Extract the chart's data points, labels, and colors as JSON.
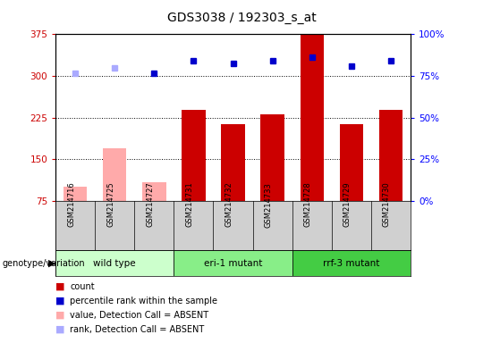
{
  "title": "GDS3038 / 192303_s_at",
  "samples": [
    "GSM214716",
    "GSM214725",
    "GSM214727",
    "GSM214731",
    "GSM214732",
    "GSM214733",
    "GSM214728",
    "GSM214729",
    "GSM214730"
  ],
  "count_values": [
    100,
    170,
    108,
    238,
    213,
    230,
    375,
    213,
    238
  ],
  "count_absent": [
    true,
    true,
    true,
    false,
    false,
    false,
    false,
    false,
    false
  ],
  "rank_values": [
    305,
    315,
    305,
    328,
    323,
    328,
    333,
    318,
    327
  ],
  "rank_absent": [
    true,
    true,
    false,
    false,
    false,
    false,
    false,
    false,
    false
  ],
  "groups": [
    {
      "label": "wild type",
      "indices": [
        0,
        1,
        2
      ]
    },
    {
      "label": "eri-1 mutant",
      "indices": [
        3,
        4,
        5
      ]
    },
    {
      "label": "rrf-3 mutant",
      "indices": [
        6,
        7,
        8
      ]
    }
  ],
  "group_colors": [
    "#ccffcc",
    "#88ee88",
    "#44cc44"
  ],
  "ylim_left": [
    75,
    375
  ],
  "ylim_right": [
    0,
    100
  ],
  "yticks_left": [
    75,
    150,
    225,
    300,
    375
  ],
  "yticks_right": [
    0,
    25,
    50,
    75,
    100
  ],
  "color_bar_present": "#cc0000",
  "color_bar_absent": "#ffaaaa",
  "color_rank_present": "#0000cc",
  "color_rank_absent": "#aaaaff",
  "bg_label": "#d0d0d0",
  "legend_items": [
    {
      "color": "#cc0000",
      "label": "count"
    },
    {
      "color": "#0000cc",
      "label": "percentile rank within the sample"
    },
    {
      "color": "#ffaaaa",
      "label": "value, Detection Call = ABSENT"
    },
    {
      "color": "#aaaaff",
      "label": "rank, Detection Call = ABSENT"
    }
  ]
}
